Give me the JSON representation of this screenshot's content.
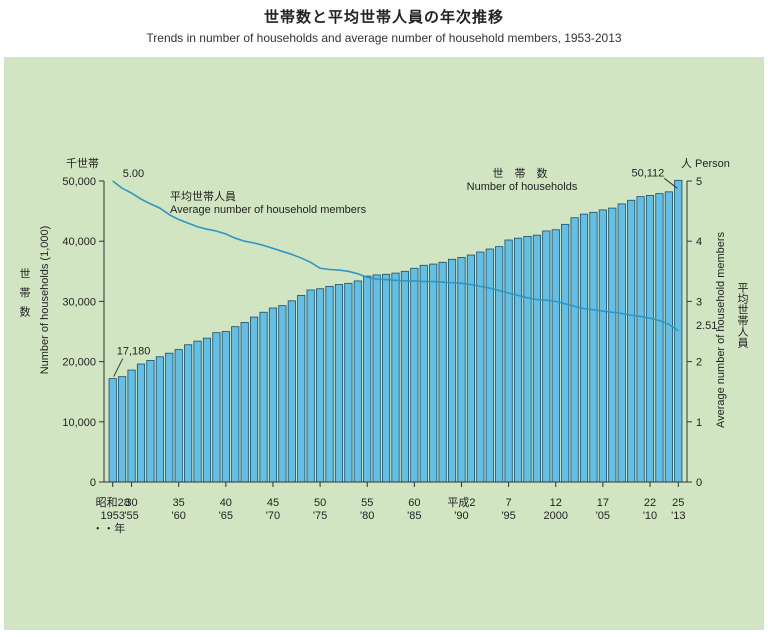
{
  "title": "世帯数と平均世帯人員の年次推移",
  "subtitle": "Trends in number of households and average number of household members, 1953-2013",
  "colors": {
    "panel": "#d1e5c2",
    "bar_fill": "#63bfe6",
    "bar_stroke": "#1b4d66",
    "line": "#2f96c4",
    "axis": "#333333"
  },
  "chart_data": {
    "type": "bar+line",
    "title": "世帯数と平均世帯人員の年次推移",
    "subtitle": "Trends in number of households and average number of household members, 1953-2013",
    "years": [
      1953,
      1954,
      1955,
      1956,
      1957,
      1958,
      1959,
      1960,
      1961,
      1962,
      1963,
      1964,
      1965,
      1966,
      1967,
      1968,
      1969,
      1970,
      1971,
      1972,
      1973,
      1974,
      1975,
      1976,
      1977,
      1978,
      1979,
      1980,
      1981,
      1982,
      1983,
      1984,
      1985,
      1986,
      1987,
      1988,
      1989,
      1990,
      1991,
      1992,
      1993,
      1994,
      1995,
      1996,
      1997,
      1998,
      1999,
      2000,
      2001,
      2002,
      2003,
      2004,
      2005,
      2006,
      2007,
      2008,
      2009,
      2010,
      2011,
      2012,
      2013
    ],
    "households_unit": "千世帯",
    "households": [
      17180,
      17500,
      18600,
      19600,
      20200,
      20800,
      21400,
      22000,
      22800,
      23400,
      23900,
      24800,
      25000,
      25800,
      26500,
      27400,
      28200,
      28900,
      29300,
      30100,
      31000,
      31900,
      32100,
      32500,
      32800,
      33000,
      33400,
      34200,
      34400,
      34500,
      34700,
      35000,
      35500,
      36000,
      36200,
      36500,
      37000,
      37300,
      37700,
      38200,
      38700,
      39100,
      40200,
      40500,
      40800,
      41000,
      41700,
      41900,
      42800,
      43900,
      44500,
      44800,
      45200,
      45500,
      46200,
      46800,
      47400,
      47600,
      47900,
      48200,
      50112
    ],
    "avg_members": [
      5.0,
      4.88,
      4.8,
      4.7,
      4.62,
      4.55,
      4.44,
      4.36,
      4.3,
      4.24,
      4.2,
      4.17,
      4.12,
      4.05,
      4.0,
      3.97,
      3.93,
      3.88,
      3.83,
      3.78,
      3.72,
      3.65,
      3.55,
      3.53,
      3.52,
      3.5,
      3.46,
      3.4,
      3.37,
      3.36,
      3.35,
      3.34,
      3.34,
      3.33,
      3.33,
      3.32,
      3.31,
      3.3,
      3.28,
      3.25,
      3.22,
      3.18,
      3.14,
      3.1,
      3.06,
      3.03,
      3.02,
      3.0,
      2.96,
      2.92,
      2.88,
      2.86,
      2.84,
      2.82,
      2.8,
      2.77,
      2.75,
      2.72,
      2.68,
      2.62,
      2.51
    ],
    "y_left": {
      "label_ja": "世帯数",
      "label_en": "Number of households (1,000)",
      "unit": "千世帯",
      "range": [
        0,
        50000
      ],
      "ticks": [
        0,
        10000,
        20000,
        30000,
        40000,
        50000
      ],
      "tick_labels": [
        "0",
        "10,000",
        "20,000",
        "30,000",
        "40,000",
        "50,000"
      ]
    },
    "y_right": {
      "label_ja": "平均世帯人員",
      "label_en": "Average number of household members",
      "unit": "人 Person",
      "range": [
        0,
        5
      ],
      "ticks": [
        0,
        1,
        2,
        3,
        4,
        5
      ],
      "tick_labels": [
        "0",
        "1",
        "2",
        "3",
        "4",
        "5"
      ]
    },
    "x_ticks": [
      {
        "year": 1953,
        "era": "昭和28",
        "ad": "1953"
      },
      {
        "year": 1955,
        "era": "30",
        "ad": "'55"
      },
      {
        "year": 1960,
        "era": "35",
        "ad": "'60"
      },
      {
        "year": 1965,
        "era": "40",
        "ad": "'65"
      },
      {
        "year": 1970,
        "era": "45",
        "ad": "'70"
      },
      {
        "year": 1975,
        "era": "50",
        "ad": "'75"
      },
      {
        "year": 1980,
        "era": "55",
        "ad": "'80"
      },
      {
        "year": 1985,
        "era": "60",
        "ad": "'85"
      },
      {
        "year": 1990,
        "era": "平成2",
        "ad": "'90"
      },
      {
        "year": 1995,
        "era": "7",
        "ad": "'95"
      },
      {
        "year": 2000,
        "era": "12",
        "ad": "2000"
      },
      {
        "year": 2005,
        "era": "17",
        "ad": "'05"
      },
      {
        "year": 2010,
        "era": "22",
        "ad": "'10"
      },
      {
        "year": 2013,
        "era": "25",
        "ad": "'13"
      }
    ],
    "x_suffix": "・・年",
    "series_labels": {
      "households_ja": "世 帯 数",
      "households_en": "Number of households",
      "members_ja": "平均世帯人員",
      "members_en": "Average number of household members"
    },
    "annotations": {
      "first_households": "17,180",
      "last_households": "50,112",
      "first_members": "5.00",
      "last_members": "2.51"
    }
  }
}
